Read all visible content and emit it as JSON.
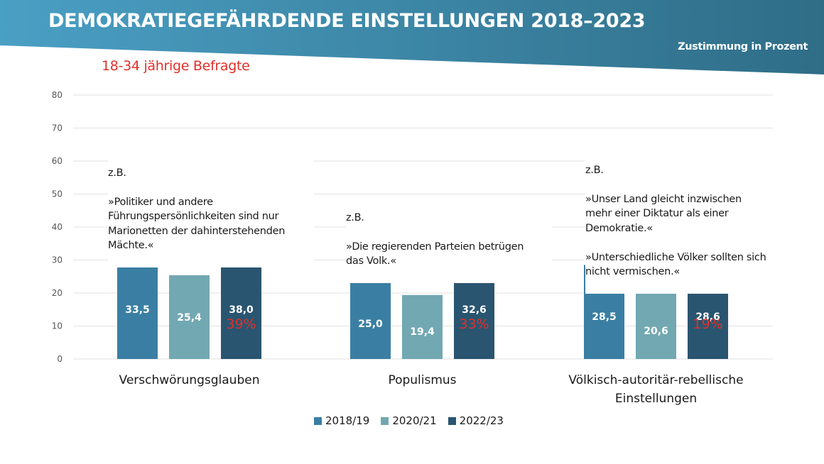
{
  "header": {
    "title": "DEMOKRATIEGEFÄHRDENDE EINSTELLUNGEN 2018–2023",
    "unit_label": "Zustimmung in Prozent",
    "subtitle": "18-34 jährige Befragte"
  },
  "colors": {
    "banner_left": "#4a9fc4",
    "banner_right": "#2f6d87",
    "series_2018": "#3a7fa3",
    "series_2020": "#72a8b2",
    "series_2022": "#2a5570",
    "accent_red": "#e0302a",
    "gridline": "#e2e2e2"
  },
  "annotations": [
    {
      "label": "z.B.",
      "text": "»Politiker und andere\nFührungspersönlichkeiten sind nur\nMarionetten der dahinterstehenden\nMächte.«"
    },
    {
      "label": "z.B.",
      "text": "»Die regierenden Parteien betrügen\ndas Volk.«"
    },
    {
      "label": "z.B.",
      "text": "»Unser Land gleicht inzwischen\nmehr einer Diktatur als einer\nDemokratie.«\n\n»Unterschiedliche Völker sollten sich\nnicht vermischen.«"
    }
  ],
  "chart_data": {
    "type": "bar",
    "title": "DEMOKRATIEGEFÄHRDENDE EINSTELLUNGEN 2018–2023",
    "subtitle": "18-34 jährige Befragte",
    "xlabel": "",
    "ylabel": "Zustimmung in Prozent",
    "ylim": [
      0,
      80
    ],
    "yticks": [
      0,
      10,
      20,
      30,
      40,
      50,
      60,
      70,
      80
    ],
    "grid": true,
    "legend_position": "bottom-center",
    "categories": [
      "Verschwörungsglauben",
      "Populismus",
      "Völkisch-autoritär-rebellische Einstellungen"
    ],
    "category_lines": [
      [
        "Verschwörungsglauben"
      ],
      [
        "Populismus"
      ],
      [
        "Völkisch-autoritär-rebellische",
        "Einstellungen"
      ]
    ],
    "series": [
      {
        "name": "2018/19",
        "values": [
          33.5,
          25.0,
          28.5
        ],
        "labels": [
          "33,5",
          "25,0",
          "28,5"
        ]
      },
      {
        "name": "2020/21",
        "values": [
          25.4,
          19.4,
          20.6
        ],
        "labels": [
          "25,4",
          "19,4",
          "20,6"
        ]
      },
      {
        "name": "2022/23",
        "values": [
          38.0,
          32.6,
          28.6
        ],
        "labels": [
          "38,0",
          "32,6",
          "28,6"
        ]
      }
    ],
    "change_annotations": [
      "39%",
      "33%",
      "19%"
    ]
  }
}
